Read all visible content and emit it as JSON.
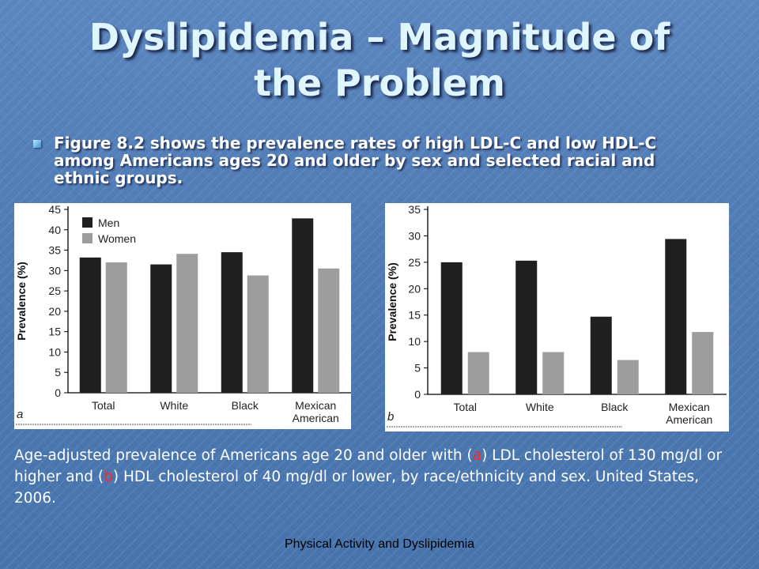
{
  "slide": {
    "title_line1": "Dyslipidemia – Magnitude of",
    "title_line2": "the Problem",
    "bullet": "Figure 8.2 shows the prevalence rates of high LDL-C and low HDL-C among Americans ages 20 and older by sex and selected racial and ethnic groups.",
    "caption": {
      "part1": "Age-adjusted prevalence of Americans age 20 and older with (",
      "a": "a",
      "part2": ") LDL cholesterol of 130 mg/dl or higher and (",
      "b": "b",
      "part3": ") HDL cholesterol of 40 mg/dl or lower, by race/ethnicity and sex. United States, 2006."
    },
    "footer": "Physical Activity and Dyslipidemia"
  },
  "colors": {
    "men": "#1f1f1f",
    "women": "#9d9d9d",
    "caption_highlight": "#ff2a2a"
  },
  "chart_data": [
    {
      "type": "bar",
      "panel_label": "a",
      "categories": [
        "Total",
        "White",
        "Black",
        "Mexican\nAmerican"
      ],
      "series": [
        {
          "name": "Men",
          "values": [
            33.2,
            31.5,
            34.5,
            42.8
          ]
        },
        {
          "name": "Women",
          "values": [
            32.0,
            34.1,
            28.8,
            30.5
          ]
        }
      ],
      "ylabel": "Prevalence (%)",
      "ylim": [
        0,
        45
      ],
      "yticks": [
        0,
        5,
        10,
        15,
        20,
        25,
        30,
        35,
        40,
        45
      ],
      "legend": "top-left",
      "grid": false
    },
    {
      "type": "bar",
      "panel_label": "b",
      "categories": [
        "Total",
        "White",
        "Black",
        "Mexican\nAmerican"
      ],
      "series": [
        {
          "name": "Men",
          "values": [
            25.0,
            25.3,
            14.7,
            29.4
          ]
        },
        {
          "name": "Women",
          "values": [
            8.0,
            8.0,
            6.5,
            11.8
          ]
        }
      ],
      "ylabel": "Prevalence (%)",
      "ylim": [
        0,
        35
      ],
      "yticks": [
        0,
        5,
        10,
        15,
        20,
        25,
        30,
        35
      ],
      "legend": "none",
      "grid": false
    }
  ]
}
